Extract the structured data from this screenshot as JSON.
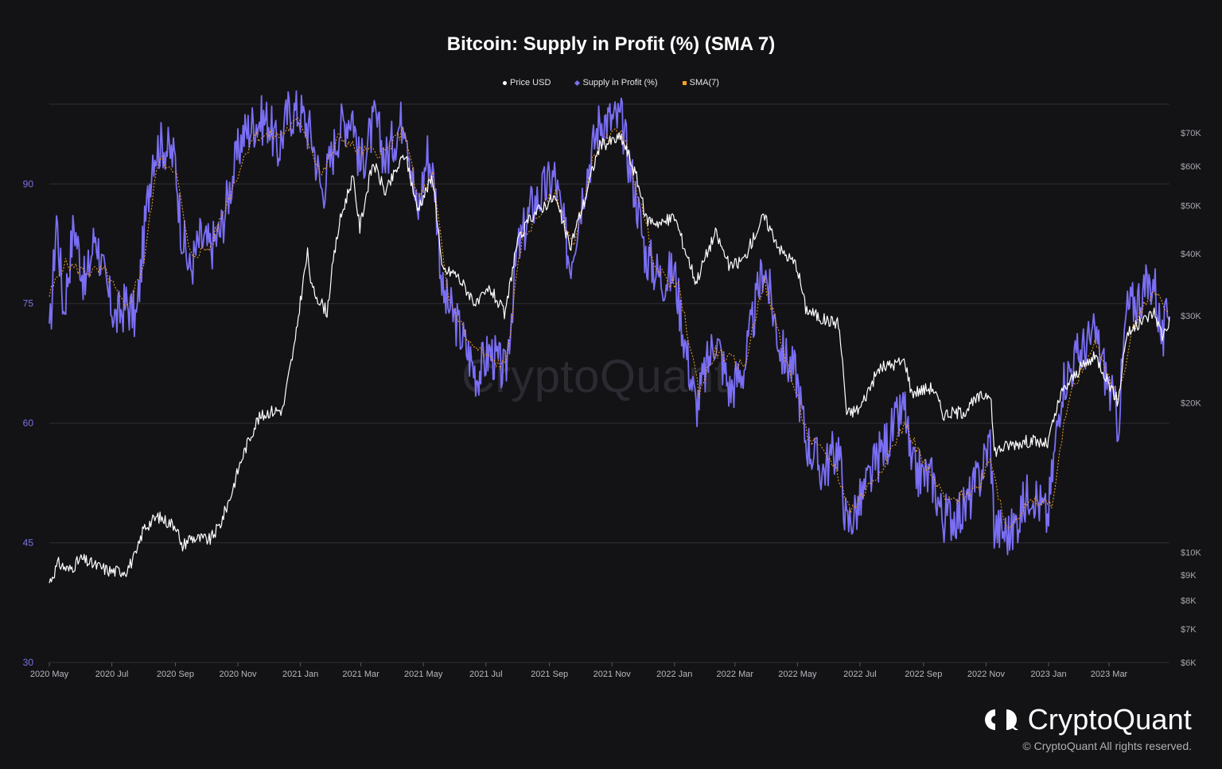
{
  "colors": {
    "background": "#131316",
    "price": "#ffffff",
    "supply": "#7b6ff5",
    "sma": "#f7a21b",
    "grid": "#2e2e34",
    "left_axis_text": "#7b73e6",
    "right_axis_text": "#a8a8ae",
    "x_axis_text": "#b8b8be"
  },
  "brand": {
    "logo_icon": "cryptoquant-logo-icon",
    "logo_text": "CryptoQuant",
    "copyright": "© CryptoQuant All rights reserved.",
    "watermark": "CryptoQuant"
  },
  "chart_data": {
    "type": "line",
    "title": "Bitcoin: Supply in Profit (%) (SMA 7)",
    "legend": [
      "Price USD",
      "Supply in Profit (%)",
      "SMA(7)"
    ],
    "legend_position": "top-center",
    "grid": true,
    "x_ticks": [
      "2020 May",
      "2020 Jul",
      "2020 Sep",
      "2020 Nov",
      "2021 Jan",
      "2021 Mar",
      "2021 May",
      "2021 Jul",
      "2021 Sep",
      "2021 Nov",
      "2022 Jan",
      "2022 Mar",
      "2022 May",
      "2022 Jul",
      "2022 Sep",
      "2022 Nov",
      "2023 Jan",
      "2023 Mar"
    ],
    "x_range": [
      "2020-05-01",
      "2023-04-29"
    ],
    "y_left": {
      "ticks": [
        30,
        45,
        60,
        75,
        90
      ],
      "range": [
        30,
        100
      ]
    },
    "y_right": {
      "scale": "log",
      "ticks": [
        6000,
        7000,
        8000,
        9000,
        10000,
        20000,
        30000,
        40000,
        50000,
        60000,
        70000
      ],
      "tick_labels": [
        "$6K",
        "$7K",
        "$8K",
        "$9K",
        "$10K",
        "$20K",
        "$30K",
        "$40K",
        "$50K",
        "$60K",
        "$70K"
      ],
      "range": [
        6000,
        80000
      ]
    },
    "series": [
      {
        "name": "Price USD",
        "axis": "right",
        "points": [
          [
            "2020-05-01",
            8700
          ],
          [
            "2020-05-10",
            9500
          ],
          [
            "2020-05-20",
            9200
          ],
          [
            "2020-06-01",
            9700
          ],
          [
            "2020-06-15",
            9400
          ],
          [
            "2020-07-01",
            9150
          ],
          [
            "2020-07-15",
            9200
          ],
          [
            "2020-07-25",
            9900
          ],
          [
            "2020-08-01",
            11200
          ],
          [
            "2020-08-15",
            11800
          ],
          [
            "2020-08-25",
            11500
          ],
          [
            "2020-09-03",
            11300
          ],
          [
            "2020-09-06",
            10200
          ],
          [
            "2020-09-15",
            10700
          ],
          [
            "2020-09-25",
            10650
          ],
          [
            "2020-10-05",
            10600
          ],
          [
            "2020-10-15",
            11400
          ],
          [
            "2020-10-25",
            13000
          ],
          [
            "2020-11-05",
            15500
          ],
          [
            "2020-11-20",
            18500
          ],
          [
            "2020-12-01",
            19200
          ],
          [
            "2020-12-15",
            19400
          ],
          [
            "2020-12-27",
            26500
          ],
          [
            "2021-01-08",
            40000
          ],
          [
            "2021-01-12",
            34000
          ],
          [
            "2021-01-27",
            30500
          ],
          [
            "2021-02-08",
            46000
          ],
          [
            "2021-02-21",
            57000
          ],
          [
            "2021-02-28",
            45000
          ],
          [
            "2021-03-13",
            61000
          ],
          [
            "2021-03-25",
            53000
          ],
          [
            "2021-04-13",
            63500
          ],
          [
            "2021-04-25",
            49000
          ],
          [
            "2021-05-10",
            57000
          ],
          [
            "2021-05-19",
            37000
          ],
          [
            "2021-06-01",
            36500
          ],
          [
            "2021-06-22",
            31500
          ],
          [
            "2021-07-05",
            34000
          ],
          [
            "2021-07-20",
            30000
          ],
          [
            "2021-07-31",
            41500
          ],
          [
            "2021-08-14",
            47500
          ],
          [
            "2021-09-06",
            52000
          ],
          [
            "2021-09-21",
            41000
          ],
          [
            "2021-10-05",
            51000
          ],
          [
            "2021-10-20",
            66000
          ],
          [
            "2021-11-10",
            68500
          ],
          [
            "2021-11-25",
            57000
          ],
          [
            "2021-12-04",
            47000
          ],
          [
            "2021-12-20",
            46000
          ],
          [
            "2022-01-01",
            47500
          ],
          [
            "2022-01-10",
            41500
          ],
          [
            "2022-01-22",
            35000
          ],
          [
            "2022-02-10",
            44000
          ],
          [
            "2022-02-24",
            37500
          ],
          [
            "2022-03-10",
            39000
          ],
          [
            "2022-03-29",
            47500
          ],
          [
            "2022-04-15",
            40500
          ],
          [
            "2022-04-30",
            38000
          ],
          [
            "2022-05-09",
            31000
          ],
          [
            "2022-05-25",
            29500
          ],
          [
            "2022-06-10",
            29000
          ],
          [
            "2022-06-18",
            19000
          ],
          [
            "2022-07-01",
            19500
          ],
          [
            "2022-07-20",
            23500
          ],
          [
            "2022-08-14",
            24300
          ],
          [
            "2022-08-20",
            21000
          ],
          [
            "2022-09-10",
            21500
          ],
          [
            "2022-09-20",
            19000
          ],
          [
            "2022-10-10",
            19200
          ],
          [
            "2022-10-25",
            20500
          ],
          [
            "2022-11-05",
            21000
          ],
          [
            "2022-11-09",
            16000
          ],
          [
            "2022-11-25",
            16500
          ],
          [
            "2022-12-15",
            16800
          ],
          [
            "2022-12-31",
            16500
          ],
          [
            "2023-01-14",
            21000
          ],
          [
            "2023-02-01",
            23500
          ],
          [
            "2023-02-16",
            24800
          ],
          [
            "2023-03-10",
            20000
          ],
          [
            "2023-03-18",
            27500
          ],
          [
            "2023-04-14",
            30500
          ],
          [
            "2023-04-22",
            27300
          ],
          [
            "2023-04-29",
            29300
          ]
        ]
      },
      {
        "name": "Supply in Profit (%)",
        "axis": "left",
        "points": [
          [
            "2020-05-01",
            70
          ],
          [
            "2020-05-08",
            86
          ],
          [
            "2020-05-15",
            74
          ],
          [
            "2020-05-25",
            85
          ],
          [
            "2020-06-05",
            77
          ],
          [
            "2020-06-15",
            84
          ],
          [
            "2020-06-25",
            77
          ],
          [
            "2020-07-05",
            73
          ],
          [
            "2020-07-15",
            75
          ],
          [
            "2020-07-25",
            73
          ],
          [
            "2020-08-01",
            83
          ],
          [
            "2020-08-10",
            94
          ],
          [
            "2020-08-20",
            95
          ],
          [
            "2020-09-01",
            93
          ],
          [
            "2020-09-06",
            85
          ],
          [
            "2020-09-15",
            79
          ],
          [
            "2020-09-25",
            83
          ],
          [
            "2020-10-05",
            82
          ],
          [
            "2020-10-15",
            84
          ],
          [
            "2020-10-25",
            90
          ],
          [
            "2020-11-05",
            96
          ],
          [
            "2020-11-20",
            98
          ],
          [
            "2020-12-01",
            98
          ],
          [
            "2020-12-10",
            94
          ],
          [
            "2020-12-20",
            99
          ],
          [
            "2021-01-01",
            99
          ],
          [
            "2021-01-12",
            96
          ],
          [
            "2021-01-22",
            89
          ],
          [
            "2021-02-08",
            97
          ],
          [
            "2021-02-21",
            99
          ],
          [
            "2021-02-28",
            92
          ],
          [
            "2021-03-15",
            98
          ],
          [
            "2021-03-25",
            93
          ],
          [
            "2021-04-13",
            99
          ],
          [
            "2021-04-25",
            86
          ],
          [
            "2021-05-05",
            94
          ],
          [
            "2021-05-12",
            90
          ],
          [
            "2021-05-20",
            76
          ],
          [
            "2021-06-01",
            73
          ],
          [
            "2021-06-10",
            70
          ],
          [
            "2021-06-22",
            66
          ],
          [
            "2021-07-05",
            69
          ],
          [
            "2021-07-20",
            66
          ],
          [
            "2021-07-31",
            81
          ],
          [
            "2021-08-14",
            87
          ],
          [
            "2021-09-06",
            91
          ],
          [
            "2021-09-21",
            80
          ],
          [
            "2021-10-05",
            90
          ],
          [
            "2021-10-20",
            98
          ],
          [
            "2021-11-10",
            98
          ],
          [
            "2021-11-25",
            88
          ],
          [
            "2021-12-04",
            81
          ],
          [
            "2021-12-20",
            78
          ],
          [
            "2022-01-01",
            79
          ],
          [
            "2022-01-10",
            71
          ],
          [
            "2022-01-22",
            62
          ],
          [
            "2022-02-10",
            71
          ],
          [
            "2022-02-24",
            64
          ],
          [
            "2022-03-10",
            67
          ],
          [
            "2022-03-29",
            80
          ],
          [
            "2022-04-15",
            69
          ],
          [
            "2022-04-30",
            66
          ],
          [
            "2022-05-09",
            58
          ],
          [
            "2022-05-25",
            54
          ],
          [
            "2022-06-10",
            57
          ],
          [
            "2022-06-18",
            47
          ],
          [
            "2022-07-01",
            50
          ],
          [
            "2022-07-20",
            56
          ],
          [
            "2022-08-14",
            62
          ],
          [
            "2022-08-20",
            54
          ],
          [
            "2022-09-10",
            53
          ],
          [
            "2022-09-20",
            48
          ],
          [
            "2022-10-10",
            49
          ],
          [
            "2022-10-25",
            53
          ],
          [
            "2022-11-05",
            58
          ],
          [
            "2022-11-09",
            47
          ],
          [
            "2022-11-25",
            46
          ],
          [
            "2022-12-15",
            52
          ],
          [
            "2022-12-31",
            48
          ],
          [
            "2023-01-14",
            65
          ],
          [
            "2023-02-01",
            69
          ],
          [
            "2023-02-16",
            71
          ],
          [
            "2023-03-10",
            60
          ],
          [
            "2023-03-18",
            74
          ],
          [
            "2023-04-14",
            78
          ],
          [
            "2023-04-22",
            70
          ],
          [
            "2023-04-29",
            75
          ]
        ]
      },
      {
        "name": "SMA(7)",
        "axis": "left",
        "points": [
          [
            "2020-05-01",
            76
          ],
          [
            "2020-05-15",
            80
          ],
          [
            "2020-06-05",
            79
          ],
          [
            "2020-06-25",
            79
          ],
          [
            "2020-07-15",
            74
          ],
          [
            "2020-08-01",
            80
          ],
          [
            "2020-08-15",
            93
          ],
          [
            "2020-09-01",
            92
          ],
          [
            "2020-09-15",
            81
          ],
          [
            "2020-10-05",
            82
          ],
          [
            "2020-10-25",
            89
          ],
          [
            "2020-11-15",
            96
          ],
          [
            "2020-12-10",
            96
          ],
          [
            "2021-01-01",
            98
          ],
          [
            "2021-01-22",
            91
          ],
          [
            "2021-02-08",
            96
          ],
          [
            "2021-02-28",
            94
          ],
          [
            "2021-03-25",
            94
          ],
          [
            "2021-04-13",
            97
          ],
          [
            "2021-04-25",
            88
          ],
          [
            "2021-05-10",
            91
          ],
          [
            "2021-05-25",
            76
          ],
          [
            "2021-06-15",
            70
          ],
          [
            "2021-07-05",
            68
          ],
          [
            "2021-07-20",
            67
          ],
          [
            "2021-08-05",
            83
          ],
          [
            "2021-09-06",
            89
          ],
          [
            "2021-09-25",
            82
          ],
          [
            "2021-10-15",
            94
          ],
          [
            "2021-11-10",
            97
          ],
          [
            "2021-11-28",
            88
          ],
          [
            "2021-12-15",
            79
          ],
          [
            "2022-01-05",
            77
          ],
          [
            "2022-01-25",
            64
          ],
          [
            "2022-02-10",
            69
          ],
          [
            "2022-03-10",
            67
          ],
          [
            "2022-03-29",
            78
          ],
          [
            "2022-04-20",
            68
          ],
          [
            "2022-05-12",
            58
          ],
          [
            "2022-06-05",
            55
          ],
          [
            "2022-06-22",
            49
          ],
          [
            "2022-07-20",
            54
          ],
          [
            "2022-08-14",
            60
          ],
          [
            "2022-09-05",
            54
          ],
          [
            "2022-09-25",
            50
          ],
          [
            "2022-10-25",
            52
          ],
          [
            "2022-11-05",
            56
          ],
          [
            "2022-11-20",
            47
          ],
          [
            "2022-12-15",
            50
          ],
          [
            "2023-01-05",
            50
          ],
          [
            "2023-01-20",
            63
          ],
          [
            "2023-02-16",
            70
          ],
          [
            "2023-03-10",
            63
          ],
          [
            "2023-03-25",
            72
          ],
          [
            "2023-04-14",
            77
          ],
          [
            "2023-04-29",
            73
          ]
        ]
      }
    ]
  }
}
